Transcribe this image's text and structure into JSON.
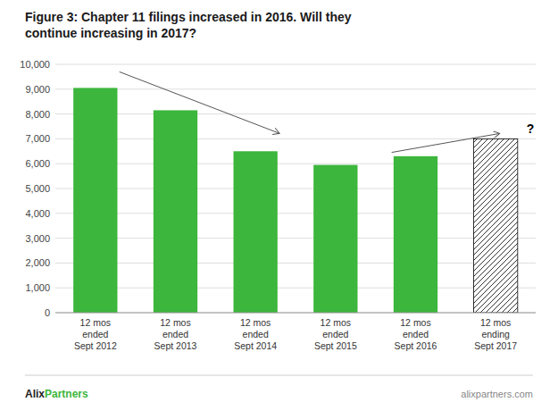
{
  "chart_data": {
    "type": "bar",
    "title": "Figure 3: Chapter 11 filings increased in 2016. Will they\ncontinue increasing in 2017?",
    "categories": [
      "12 mos\nended\nSept 2012",
      "12 mos\nended\nSept 2013",
      "12 mos\nended\nSept 2014",
      "12 mos\nended\nSept 2015",
      "12 mos\nended\nSept 2016",
      "12 mos\nending\nSept 2017"
    ],
    "values": [
      9050,
      8150,
      6500,
      5950,
      6300,
      7000
    ],
    "colors": [
      "#3cb63c",
      "#3cb63c",
      "#3cb63c",
      "#3cb63c",
      "#3cb63c",
      "#ffffff"
    ],
    "ylim": [
      0,
      10000
    ],
    "yticks": [
      0,
      {
        "value": 1000,
        "label": "1,000"
      },
      {
        "value": 2000,
        "label": "2,000"
      },
      {
        "value": 3000,
        "label": "3,000"
      },
      {
        "value": 4000,
        "label": "4,000"
      },
      {
        "value": 5000,
        "label": "5,000"
      },
      {
        "value": 6000,
        "label": "6,000"
      },
      {
        "value": 7000,
        "label": "7,000"
      },
      {
        "value": 8000,
        "label": "8,000"
      },
      {
        "value": 9000,
        "label": "9,000"
      },
      {
        "value": 10000,
        "label": "10,000"
      }
    ],
    "grid": true,
    "annotations": [
      "?",
      "Alix",
      "Partners",
      "alixpartners.com"
    ]
  }
}
